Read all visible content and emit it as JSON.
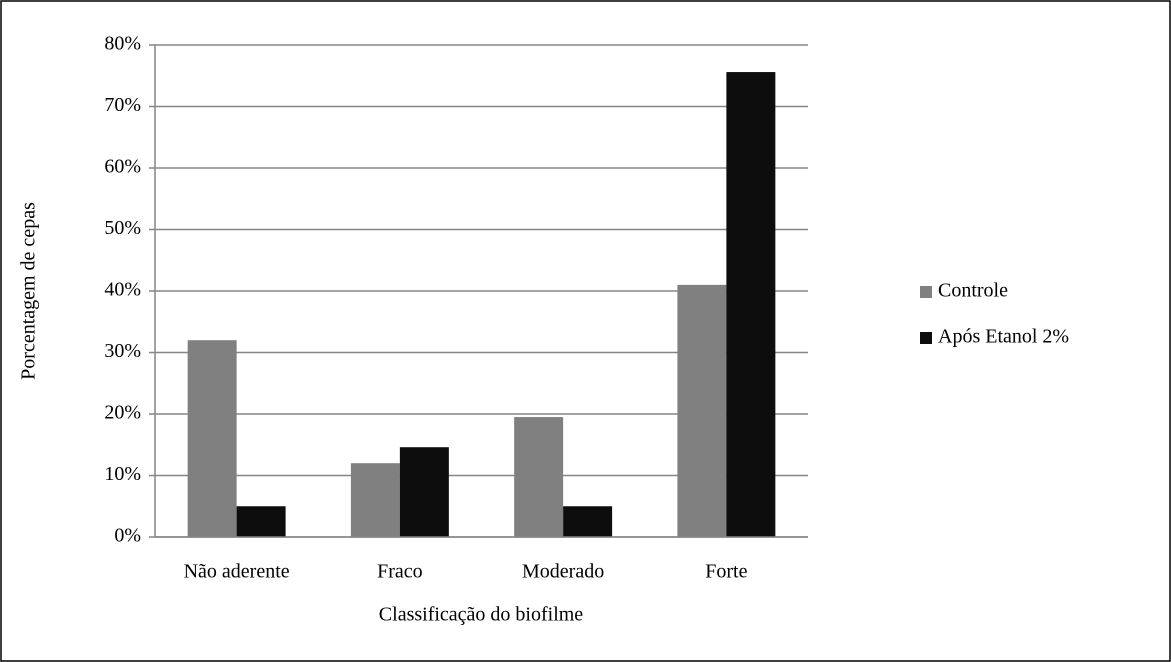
{
  "chart_data": {
    "type": "bar",
    "x_label": "Classificação do biofilme",
    "y_label": "Porcentagem de cepas",
    "categories": [
      "Não aderente",
      "Fraco",
      "Moderado",
      "Forte"
    ],
    "series": [
      {
        "name": "Controle",
        "color": "#808080",
        "values": [
          32,
          12,
          19.5,
          41
        ]
      },
      {
        "name": "Após Etanol 2%",
        "color": "#0d0d0d",
        "values": [
          5,
          14.6,
          5,
          75.6
        ]
      }
    ],
    "ylim": [
      0,
      80
    ],
    "yticks": [
      {
        "value": 0,
        "label": "0%"
      },
      {
        "value": 10,
        "label": "10%"
      },
      {
        "value": 20,
        "label": "20%"
      },
      {
        "value": 30,
        "label": "30%"
      },
      {
        "value": 40,
        "label": "40%"
      },
      {
        "value": 50,
        "label": "50%"
      },
      {
        "value": 60,
        "label": "60%"
      },
      {
        "value": 70,
        "label": "70%"
      },
      {
        "value": 80,
        "label": "80%"
      }
    ],
    "grid": true,
    "legend": "right"
  }
}
